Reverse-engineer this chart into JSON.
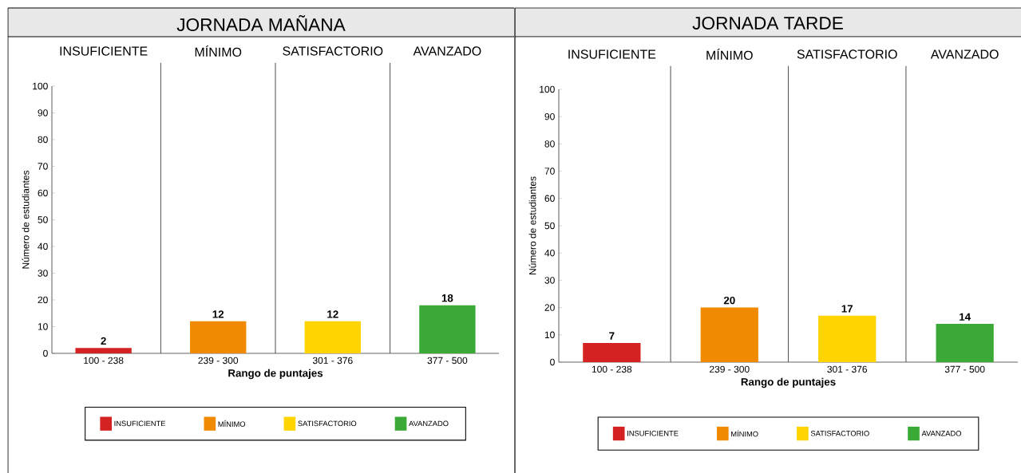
{
  "chart_data": [
    {
      "type": "bar",
      "title": "JORNADA MAÑANA",
      "categories": [
        "100 - 238",
        "239 - 300",
        "301 - 376",
        "377 - 500"
      ],
      "xlabel": "Rango de puntajes",
      "ylabel": "Número de estudiantes",
      "ylim": [
        0,
        100
      ],
      "yticks": [
        0,
        10,
        20,
        30,
        40,
        50,
        60,
        70,
        80,
        90,
        100
      ],
      "data_labels": true,
      "legend": "bottom",
      "annotations": [
        "INSUFICIENTE",
        "MÍNIMO",
        "SATISFACTORIO",
        "AVANZADO"
      ],
      "series": [
        {
          "name": "INSUFICIENTE",
          "color": "#d42121",
          "values": [
            2,
            null,
            null,
            null
          ]
        },
        {
          "name": "MÍNIMO",
          "color": "#f08a00",
          "values": [
            null,
            12,
            null,
            null
          ]
        },
        {
          "name": "SATISFACTORIO",
          "color": "#ffd400",
          "values": [
            null,
            null,
            12,
            null
          ]
        },
        {
          "name": "AVANZADO",
          "color": "#3aa935",
          "values": [
            null,
            null,
            null,
            18
          ]
        }
      ]
    },
    {
      "type": "bar",
      "title": "JORNADA TARDE",
      "categories": [
        "100 - 238",
        "239 - 300",
        "301 - 376",
        "377 - 500"
      ],
      "xlabel": "Rango de puntajes",
      "ylabel": "Número de estudiantes",
      "ylim": [
        0,
        100
      ],
      "yticks": [
        0,
        10,
        20,
        30,
        40,
        50,
        60,
        70,
        80,
        90,
        100
      ],
      "data_labels": true,
      "legend": "bottom",
      "annotations": [
        "INSUFICIENTE",
        "MÍNIMO",
        "SATISFACTORIO",
        "AVANZADO"
      ],
      "series": [
        {
          "name": "INSUFICIENTE",
          "color": "#d42121",
          "values": [
            7,
            null,
            null,
            null
          ]
        },
        {
          "name": "MÍNIMO",
          "color": "#f08a00",
          "values": [
            null,
            20,
            null,
            null
          ]
        },
        {
          "name": "SATISFACTORIO",
          "color": "#ffd400",
          "values": [
            null,
            null,
            17,
            null
          ]
        },
        {
          "name": "AVANZADO",
          "color": "#3aa935",
          "values": [
            null,
            null,
            null,
            14
          ]
        }
      ]
    }
  ]
}
